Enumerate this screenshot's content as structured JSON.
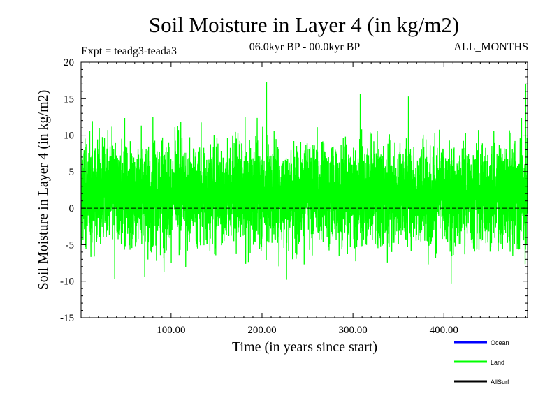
{
  "chart_data": {
    "type": "line",
    "title": "Soil Moisture in Layer 4 (in kg/m2)",
    "subtitle_left": "Expt = teadg3-teada3",
    "subtitle_center": "06.0kyr BP - 00.0kyr BP",
    "subtitle_right": "ALL_MONTHS",
    "xlabel": "Time (in years since start)",
    "ylabel": "Soil Moisture in Layer 4 (in kg/m2)",
    "xlim": [
      1,
      492
    ],
    "ylim": [
      -15,
      20
    ],
    "xticks": [
      100,
      200,
      300,
      400
    ],
    "xtick_labels": [
      "100.00",
      "200.00",
      "300.00",
      "400.00"
    ],
    "yticks": [
      -15,
      -10,
      -5,
      0,
      5,
      10,
      15,
      20
    ],
    "ytick_labels": [
      "-15",
      "-10",
      "-5",
      "0",
      "5",
      "10",
      "15",
      "20"
    ],
    "zero_line": 0,
    "legend": [
      {
        "name": "Ocean",
        "color": "#0000ff"
      },
      {
        "name": "Land",
        "color": "#00ff00"
      },
      {
        "name": "AllSurf",
        "color": "#000000"
      }
    ],
    "series": [
      {
        "name": "Land",
        "color": "#00ff00",
        "samples_per_year": 12,
        "mean": 2.0,
        "noise_std": 3.4,
        "noise_min": -10.3,
        "noise_max": 17.3,
        "anchors": [
          {
            "x": 1,
            "y": 8
          },
          {
            "x": 38,
            "y": -9.7
          },
          {
            "x": 71,
            "y": -9.4
          },
          {
            "x": 80,
            "y": 12.5
          },
          {
            "x": 205,
            "y": 17.3
          },
          {
            "x": 227,
            "y": -9.8
          },
          {
            "x": 308,
            "y": 15.7
          },
          {
            "x": 361,
            "y": 15.3
          },
          {
            "x": 408,
            "y": -10.3
          },
          {
            "x": 490,
            "y": 17.0
          }
        ]
      }
    ]
  }
}
